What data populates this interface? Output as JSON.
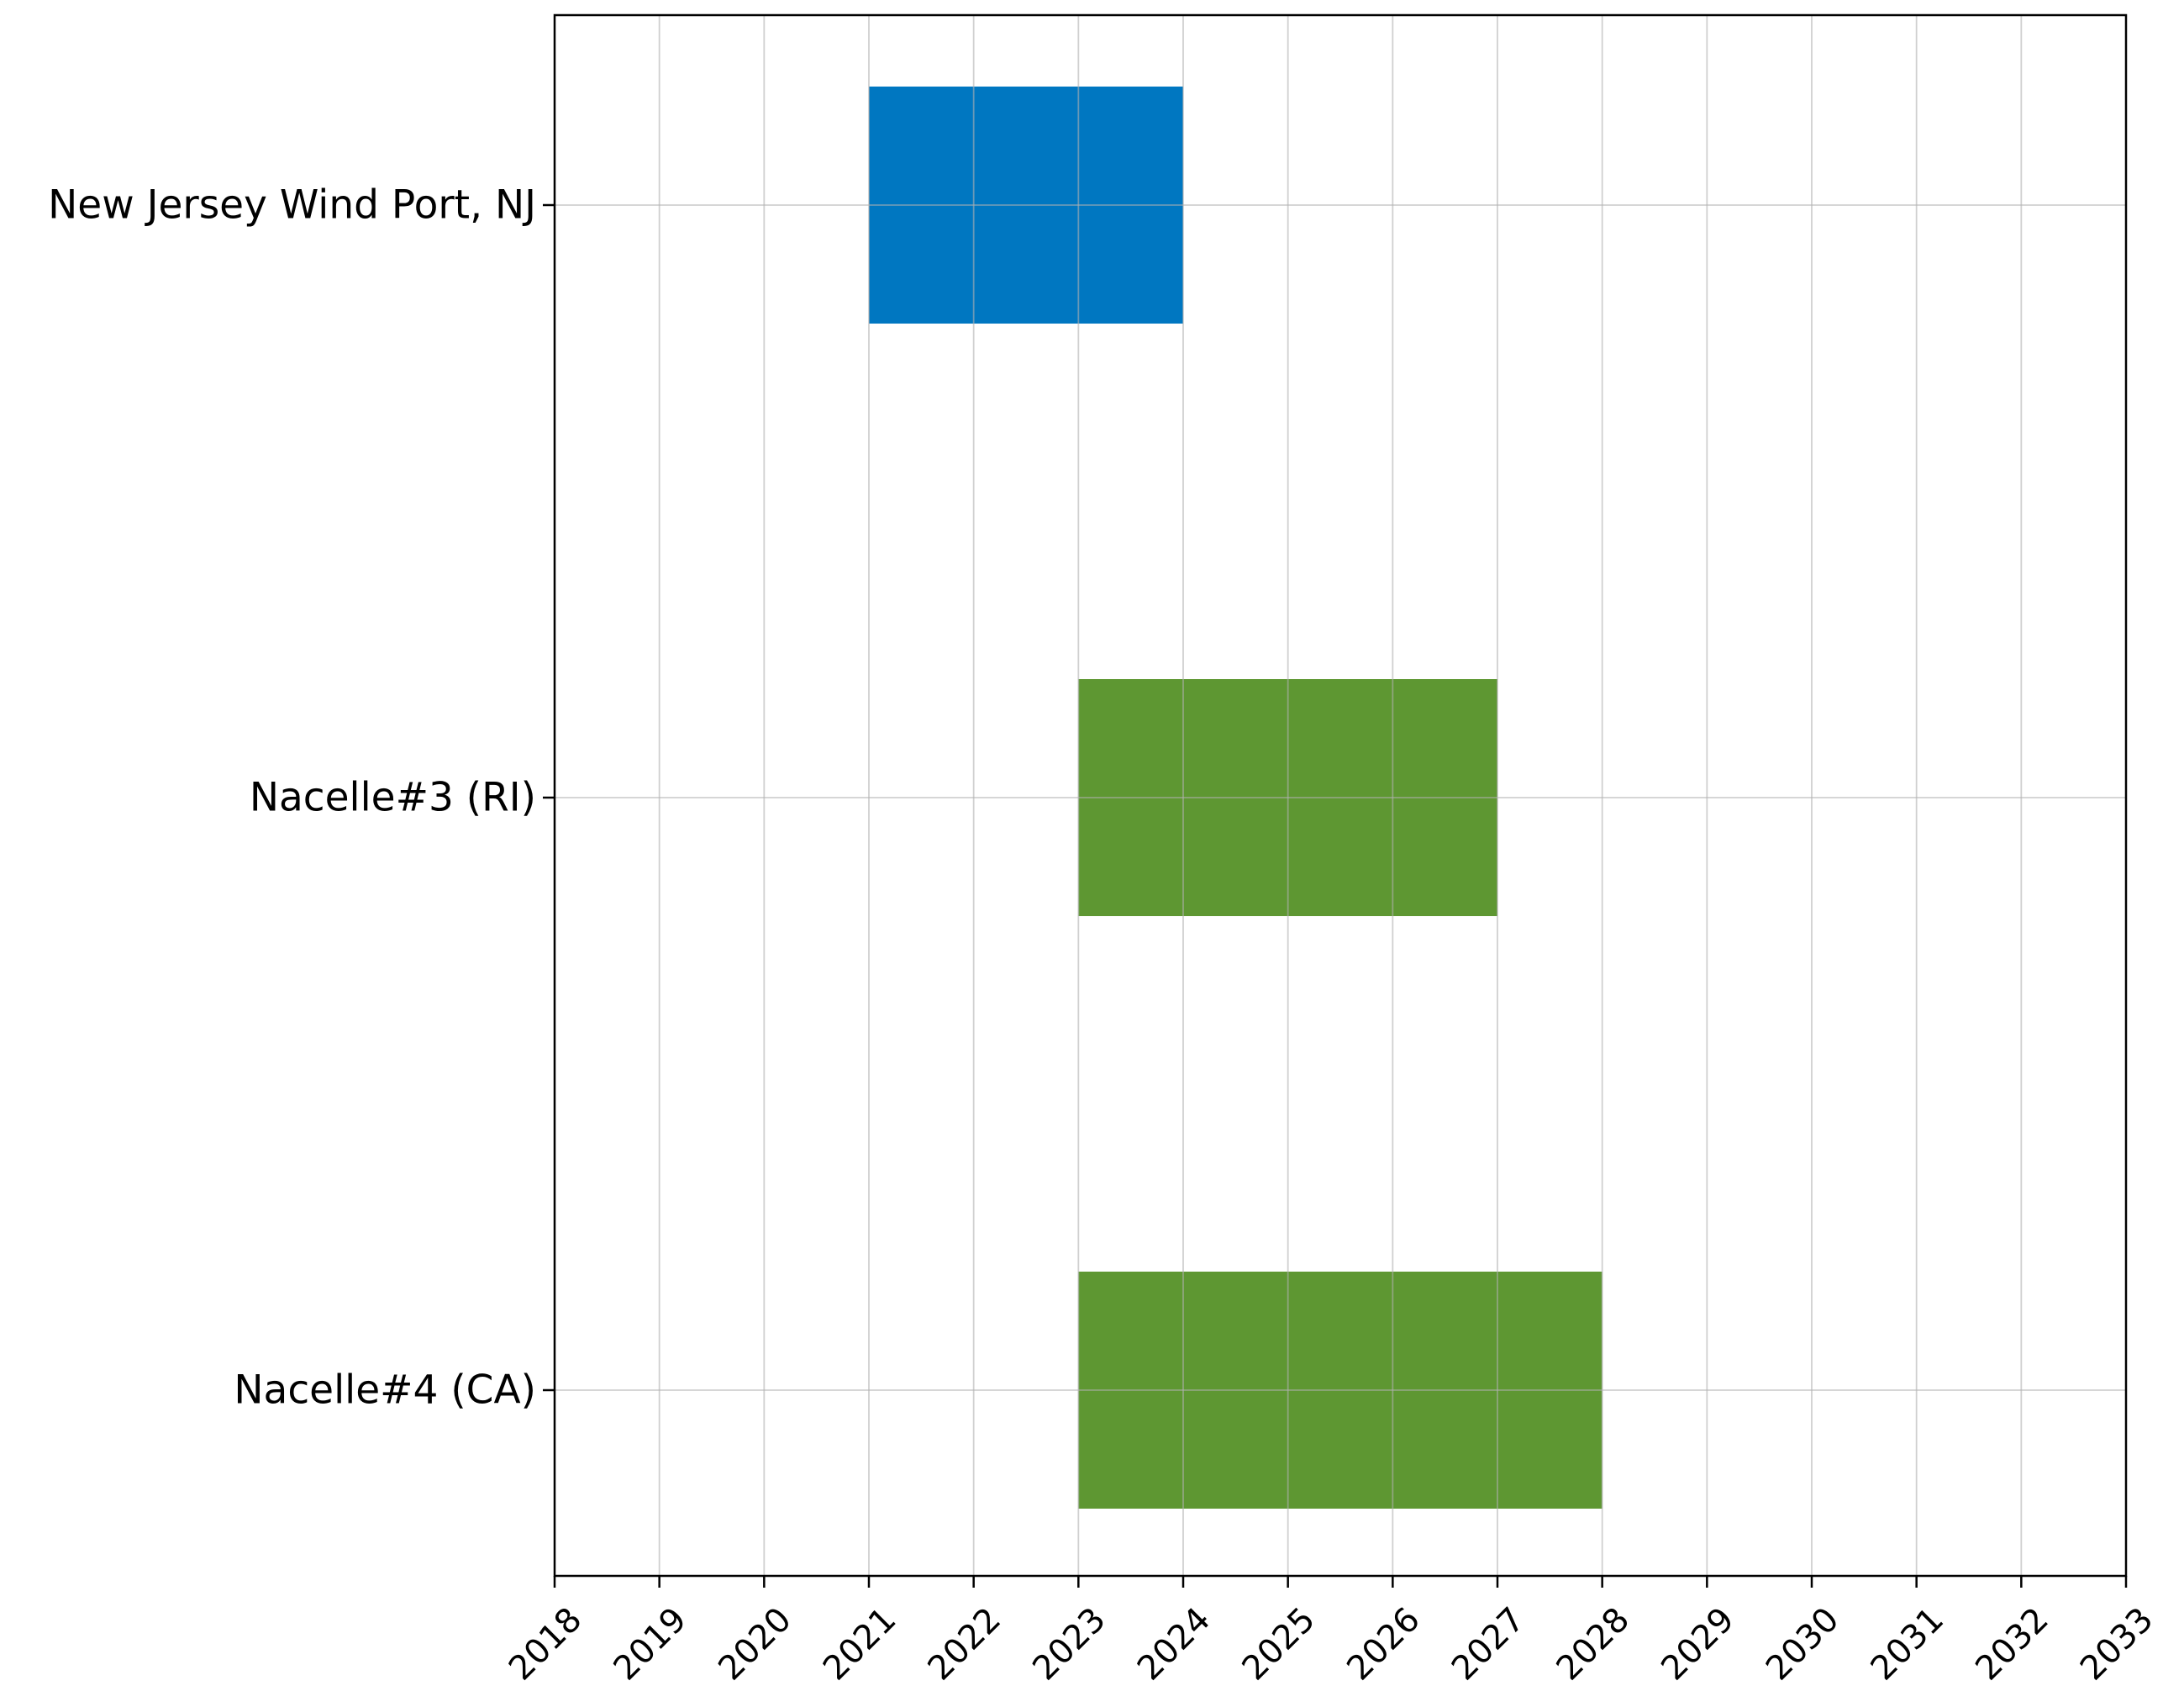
{
  "chart_data": {
    "type": "gantt",
    "title": "",
    "xlabel": "",
    "ylabel": "",
    "xlim": [
      2018,
      2033
    ],
    "x_ticks": [
      "2018",
      "2019",
      "2020",
      "2021",
      "2022",
      "2023",
      "2024",
      "2025",
      "2026",
      "2027",
      "2028",
      "2029",
      "2030",
      "2031",
      "2032",
      "2033"
    ],
    "grid": true,
    "legend": "none",
    "tasks": [
      {
        "label": "New Jersey Wind Port, NJ",
        "start": 2021,
        "end": 2024,
        "color": "#0077c1"
      },
      {
        "label": "Nacelle#3 (RI)",
        "start": 2023,
        "end": 2027,
        "color": "#5e9732"
      },
      {
        "label": "Nacelle#4 (CA)",
        "start": 2023,
        "end": 2028,
        "color": "#5e9732"
      }
    ]
  }
}
